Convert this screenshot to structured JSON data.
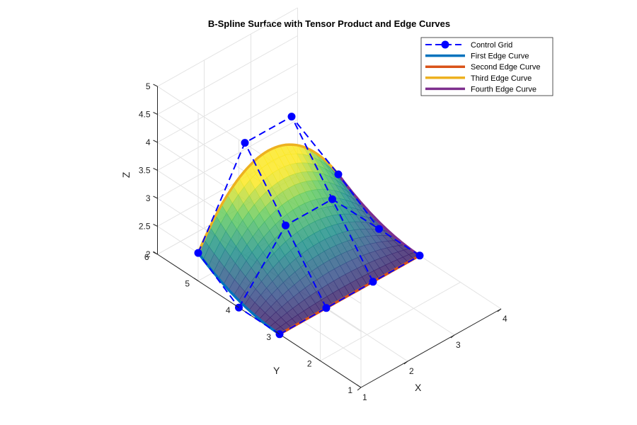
{
  "chart_data": {
    "type": "surface",
    "title": "B-Spline Surface with Tensor Product and Edge Curves",
    "xlabel": "X",
    "ylabel": "Y",
    "zlabel": "Z",
    "xlim": [
      1,
      4
    ],
    "ylim": [
      1,
      6
    ],
    "zlim": [
      2,
      5
    ],
    "x_ticks": [
      "1",
      "2",
      "3",
      "4"
    ],
    "y_ticks": [
      "1",
      "2",
      "3",
      "4",
      "5",
      "6"
    ],
    "z_ticks": [
      "2",
      "2.5",
      "3",
      "3.5",
      "4",
      "4.5",
      "5"
    ],
    "grid": true,
    "legend_position": "top-right",
    "control_grid": {
      "name": "Control Grid",
      "color": "#0000ff",
      "points": [
        [
          [
            1,
            3,
            2
          ],
          [
            2,
            3,
            2
          ],
          [
            3,
            3,
            2
          ],
          [
            4,
            3,
            2
          ]
        ],
        [
          [
            1,
            4,
            2
          ],
          [
            2,
            4,
            3
          ],
          [
            3,
            4,
            3
          ],
          [
            4,
            4,
            2
          ]
        ],
        [
          [
            1,
            5,
            2.5
          ],
          [
            2,
            5,
            4
          ],
          [
            3,
            5,
            4
          ],
          [
            4,
            5,
            2.5
          ]
        ]
      ]
    },
    "series": [
      {
        "name": "First Edge Curve",
        "color": "#0072bd"
      },
      {
        "name": "Second Edge Curve",
        "color": "#d95319"
      },
      {
        "name": "Third Edge Curve",
        "color": "#edb120"
      },
      {
        "name": "Fourth Edge Curve",
        "color": "#7e2f8e"
      }
    ]
  }
}
